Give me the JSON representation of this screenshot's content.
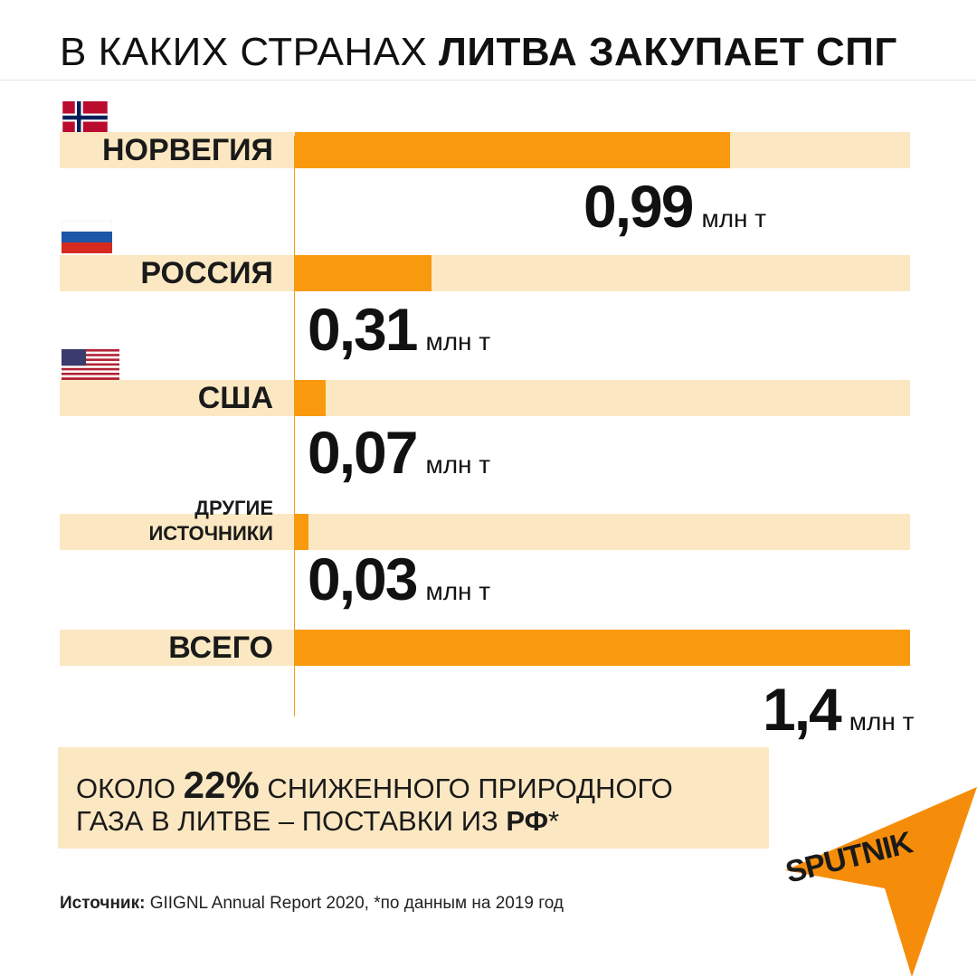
{
  "title": {
    "regular": "В КАКИХ СТРАНАХ ",
    "bold": "ЛИТВА ЗАКУПАЕТ СПГ"
  },
  "chart_data": {
    "type": "bar",
    "orientation": "horizontal",
    "unit": "млн т",
    "xlim": [
      0,
      1.4
    ],
    "categories": [
      "НОРВЕГИЯ",
      "РОССИЯ",
      "США",
      "ДРУГИЕ ИСТОЧНИКИ",
      "ВСЕГО"
    ],
    "values": [
      0.99,
      0.31,
      0.07,
      0.03,
      1.4
    ],
    "value_labels": [
      "0,99",
      "0,31",
      "0,07",
      "0,03",
      "1,4"
    ],
    "grid": false,
    "legend": "none"
  },
  "rows": [
    {
      "label": "НОРВЕГИЯ",
      "flag": "norway-flag"
    },
    {
      "label": "РОССИЯ",
      "flag": "russia-flag"
    },
    {
      "label": "США",
      "flag": "usa-flag"
    },
    {
      "label_line1": "ДРУГИЕ",
      "label_line2": "ИСТОЧНИКИ",
      "flag": null
    },
    {
      "label": "ВСЕГО",
      "flag": null
    }
  ],
  "note": {
    "line1_prefix": "ОКОЛО ",
    "line1_highlight": "22%",
    "line1_suffix": " СНИЖЕННОГО ПРИРОДНОГО",
    "line2_prefix": "ГАЗА В ЛИТВЕ – ПОСТАВКИ ИЗ ",
    "line2_highlight": "РФ",
    "line2_suffix": "*"
  },
  "source": {
    "label": "Источник:",
    "text": " GIIGNL Annual Report 2020, *по данным на 2019 год"
  },
  "logo": {
    "text": "SPUTNIK",
    "icon": "sputnik-logo"
  },
  "colors": {
    "bar": "#f99a0e",
    "track": "#fbe8c2",
    "axis": "#f29a1f",
    "logo": "#f68d0a"
  }
}
